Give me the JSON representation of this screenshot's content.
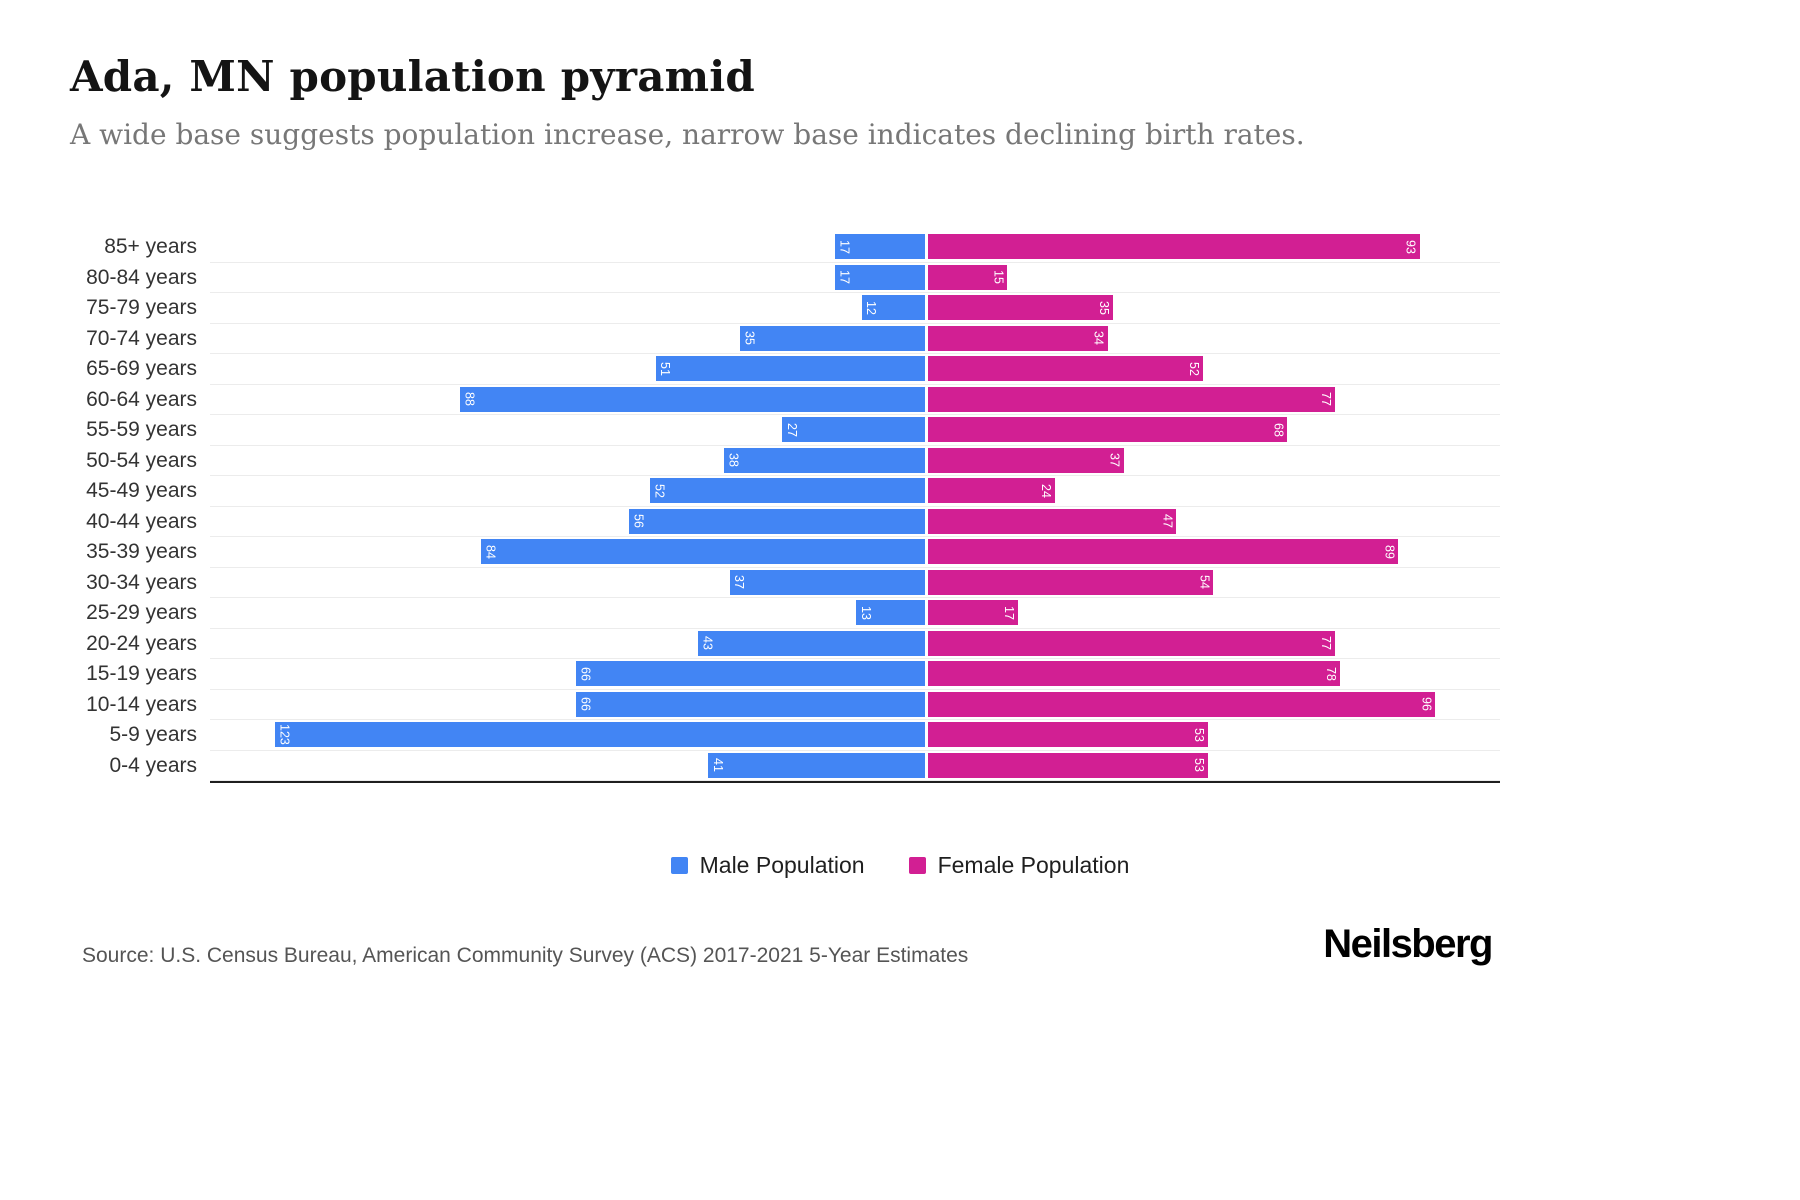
{
  "header": {
    "title": "Ada, MN population pyramid",
    "subtitle": "A wide base suggests population increase, narrow base indicates declining birth rates."
  },
  "chart_data": {
    "type": "bar",
    "subtype": "population-pyramid",
    "orientation": "horizontal",
    "categories": [
      "85+ years",
      "80-84 years",
      "75-79 years",
      "70-74 years",
      "65-69 years",
      "60-64 years",
      "55-59 years",
      "50-54 years",
      "45-49 years",
      "40-44 years",
      "35-39 years",
      "30-34 years",
      "25-29 years",
      "20-24 years",
      "15-19 years",
      "10-14 years",
      "5-9 years",
      "0-4 years"
    ],
    "series": [
      {
        "name": "Male Population",
        "side": "left",
        "color": "#4285F4",
        "values": [
          17,
          17,
          12,
          35,
          51,
          88,
          27,
          38,
          52,
          56,
          84,
          37,
          13,
          43,
          66,
          66,
          123,
          41
        ]
      },
      {
        "name": "Female Population",
        "side": "right",
        "color": "#D21F93",
        "values": [
          93,
          15,
          35,
          34,
          52,
          77,
          68,
          37,
          24,
          47,
          89,
          54,
          17,
          77,
          78,
          96,
          53,
          53
        ]
      }
    ],
    "value_labels": "inside-bar-end, rotated 90deg, white",
    "axis_max": 130,
    "grid": "horizontal-light",
    "legend_position": "bottom-center"
  },
  "legend": {
    "male_label": "Male Population",
    "female_label": "Female Population"
  },
  "footer": {
    "source": "Source: U.S. Census Bureau, American Community Survey (ACS) 2017-2021 5-Year Estimates",
    "brand": "Neilsberg"
  }
}
